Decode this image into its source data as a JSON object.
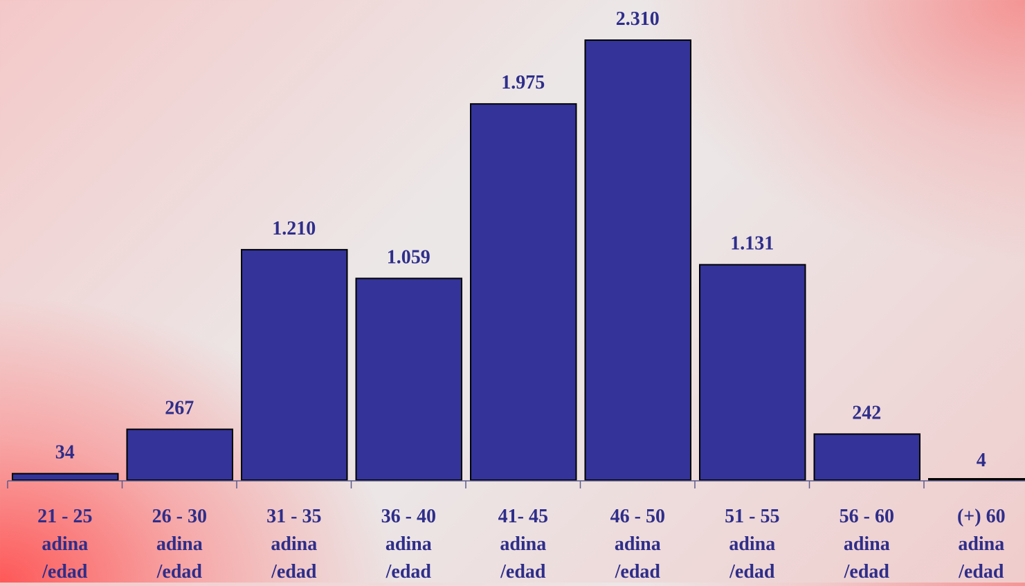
{
  "chart_data": {
    "type": "bar",
    "title": "",
    "xlabel": "",
    "ylabel": "",
    "ylim": [
      0,
      2310
    ],
    "grid": false,
    "legend": "none",
    "categories": [
      [
        "21 - 25",
        "adina",
        "/edad"
      ],
      [
        "26 - 30",
        "adina",
        "/edad"
      ],
      [
        "31 - 35",
        "adina",
        "/edad"
      ],
      [
        "36 - 40",
        "adina",
        "/edad"
      ],
      [
        "41- 45",
        "adina",
        "/edad"
      ],
      [
        "46 - 50",
        "adina",
        "/edad"
      ],
      [
        "51 - 55",
        "adina",
        "/edad"
      ],
      [
        "56 - 60",
        "adina",
        "/edad"
      ],
      [
        "(+) 60",
        "adina",
        "/edad"
      ]
    ],
    "values": [
      34,
      267,
      1210,
      1059,
      1975,
      2310,
      1131,
      242,
      4
    ],
    "value_labels": [
      "34",
      "267",
      "1.210",
      "1.059",
      "1.975",
      "2.310",
      "1.131",
      "242",
      "4"
    ],
    "colors": {
      "bar_fill": "#333399",
      "bar_stroke": "#000000",
      "label_text": "#2e2e8a",
      "axis": "#5a5a8a"
    }
  }
}
